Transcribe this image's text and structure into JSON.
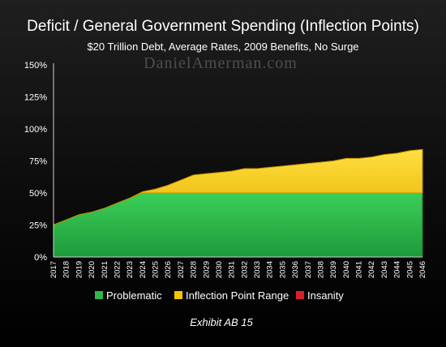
{
  "chart_data": {
    "type": "area",
    "title": "Deficit / General Government Spending (Inflection Points)",
    "subtitle": "$20 Trillion Debt, Average Rates, 2009 Benefits, No Surge",
    "watermark": "DanielAmerman.com",
    "footer": "Exhibit AB 15",
    "xlabel": "",
    "ylabel": "",
    "ylim": [
      0,
      150
    ],
    "y_ticks": [
      "0%",
      "25%",
      "50%",
      "75%",
      "100%",
      "125%",
      "150%"
    ],
    "y_tick_values": [
      0,
      25,
      50,
      75,
      100,
      125,
      150
    ],
    "grid": false,
    "legend_position": "bottom",
    "x": [
      2017,
      2018,
      2019,
      2020,
      2021,
      2022,
      2023,
      2024,
      2025,
      2026,
      2027,
      2028,
      2029,
      2030,
      2031,
      2032,
      2033,
      2034,
      2035,
      2036,
      2037,
      2038,
      2039,
      2040,
      2041,
      2042,
      2043,
      2044,
      2045,
      2046
    ],
    "series": [
      {
        "name": "Problematic",
        "color": "#2db84a",
        "values": [
          25,
          29,
          33,
          35,
          38,
          42,
          46,
          50,
          50,
          50,
          50,
          50,
          50,
          50,
          50,
          50,
          50,
          50,
          50,
          50,
          50,
          50,
          50,
          50,
          50,
          50,
          50,
          50,
          50,
          50
        ]
      },
      {
        "name": "Inflection Point Range",
        "color": "#f5c400",
        "values": [
          0,
          0,
          0,
          0,
          0,
          0,
          0,
          1,
          3,
          6,
          10,
          14,
          15,
          16,
          17,
          19,
          19,
          20,
          21,
          22,
          23,
          24,
          25,
          27,
          27,
          28,
          30,
          31,
          33,
          34
        ]
      },
      {
        "name": "Insanity",
        "color": "#d8202a",
        "values": [
          0,
          0,
          0,
          0,
          0,
          0,
          0,
          0,
          0,
          0,
          0,
          0,
          0,
          0,
          0,
          0,
          0,
          0,
          0,
          0,
          0,
          0,
          0,
          0,
          0,
          0,
          0,
          0,
          0,
          0
        ]
      }
    ]
  }
}
